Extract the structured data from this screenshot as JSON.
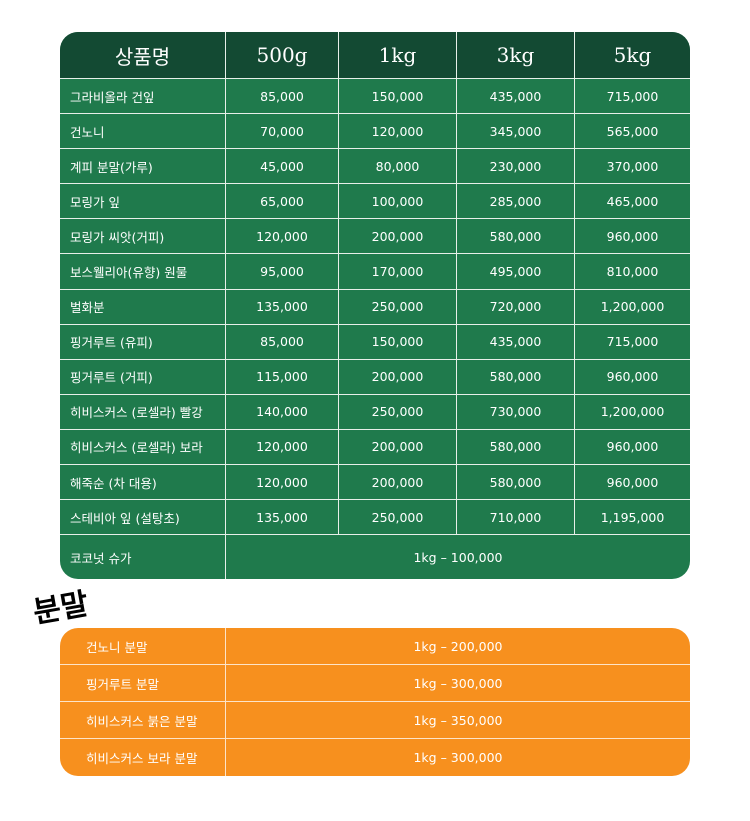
{
  "price_table": {
    "headers": [
      "상품명",
      "500g",
      "1kg",
      "3kg",
      "5kg"
    ],
    "rows": [
      {
        "name": "그라비올라 건잎",
        "prices": [
          "85,000",
          "150,000",
          "435,000",
          "715,000"
        ]
      },
      {
        "name": "건노니",
        "prices": [
          "70,000",
          "120,000",
          "345,000",
          "565,000"
        ]
      },
      {
        "name": "계피 분말(가루)",
        "prices": [
          "45,000",
          "80,000",
          "230,000",
          "370,000"
        ]
      },
      {
        "name": "모링가 잎",
        "prices": [
          "65,000",
          "100,000",
          "285,000",
          "465,000"
        ]
      },
      {
        "name": "모링가 씨앗(거피)",
        "prices": [
          "120,000",
          "200,000",
          "580,000",
          "960,000"
        ]
      },
      {
        "name": "보스웰리아(유향) 원물",
        "prices": [
          "95,000",
          "170,000",
          "495,000",
          "810,000"
        ]
      },
      {
        "name": "벌화분",
        "prices": [
          "135,000",
          "250,000",
          "720,000",
          "1,200,000"
        ]
      },
      {
        "name": "핑거루트 (유피)",
        "prices": [
          "85,000",
          "150,000",
          "435,000",
          "715,000"
        ]
      },
      {
        "name": "핑거루트 (거피)",
        "prices": [
          "115,000",
          "200,000",
          "580,000",
          "960,000"
        ]
      },
      {
        "name": "히비스커스 (로셀라) 빨강",
        "prices": [
          "140,000",
          "250,000",
          "730,000",
          "1,200,000"
        ]
      },
      {
        "name": "히비스커스 (로셀라) 보라",
        "prices": [
          "120,000",
          "200,000",
          "580,000",
          "960,000"
        ]
      },
      {
        "name": "해죽순 (차 대용)",
        "prices": [
          "120,000",
          "200,000",
          "580,000",
          "960,000"
        ]
      },
      {
        "name": "스테비아 잎 (설탕초)",
        "prices": [
          "135,000",
          "250,000",
          "710,000",
          "1,195,000"
        ]
      }
    ],
    "last_row": {
      "name": "코코넛 슈가",
      "price": "1kg – 100,000"
    }
  },
  "powder_section": {
    "label": "분말",
    "rows": [
      {
        "name": "건노니 분말",
        "price": "1kg – 200,000"
      },
      {
        "name": "핑거루트 분말",
        "price": "1kg – 300,000"
      },
      {
        "name": "히비스커스 붉은 분말",
        "price": "1kg – 350,000"
      },
      {
        "name": "히비스커스 보라 분말",
        "price": "1kg – 300,000"
      }
    ]
  },
  "colors": {
    "table_green": "#1f7a4c",
    "header_green": "#134a33",
    "powder_orange": "#f7901e"
  }
}
